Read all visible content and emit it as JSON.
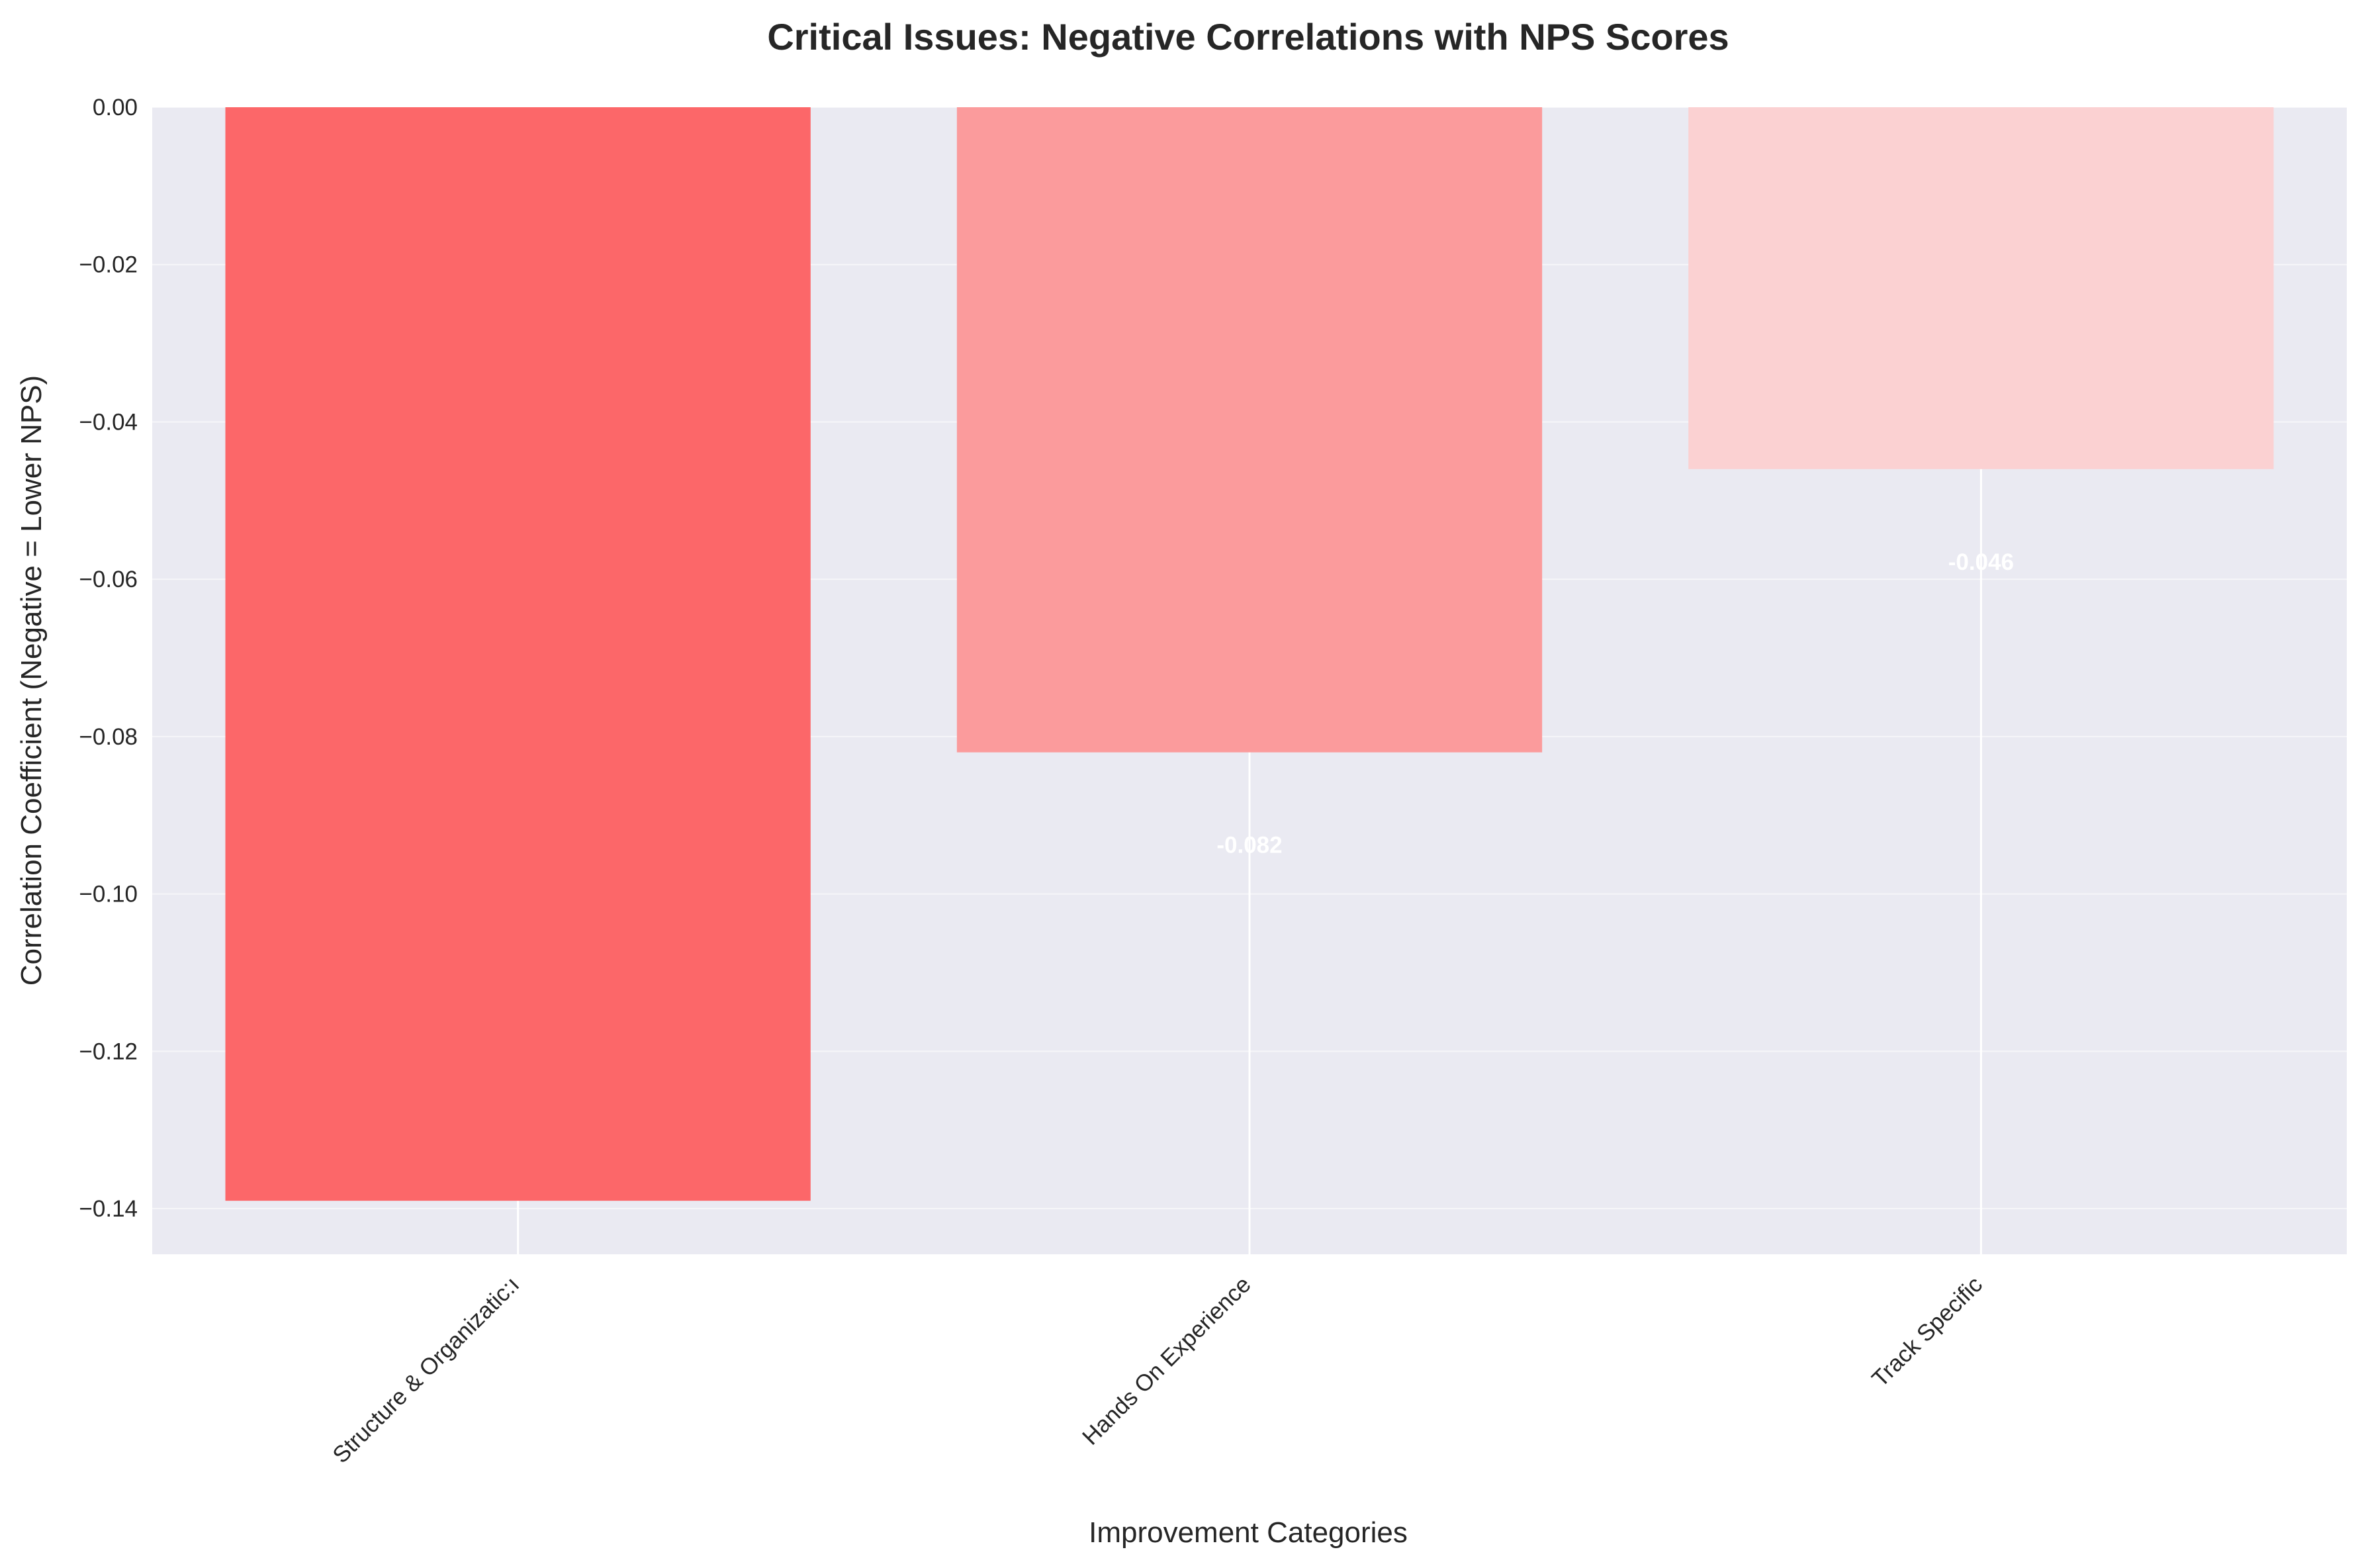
{
  "chart_data": {
    "type": "bar",
    "title": "Critical Issues: Negative Correlations with NPS Scores",
    "xlabel": "Improvement Categories",
    "ylabel": "Correlation Coefficient (Negative = Lower NPS)",
    "categories": [
      "Structure & Organizatic:ı",
      "Hands On Experience",
      "Track Specific"
    ],
    "values": [
      -0.139,
      -0.082,
      -0.046
    ],
    "data_labels": [
      "",
      "-0.082",
      "-0.046"
    ],
    "bar_colors": [
      "#fc6769",
      "#fb9b9c",
      "#fbd1d2"
    ],
    "ylim": [
      -0.1458,
      0.0
    ],
    "yticks": [
      0.0,
      -0.02,
      -0.04,
      -0.06,
      -0.08,
      -0.1,
      -0.12,
      -0.14
    ],
    "ytick_labels": [
      "0.00",
      "−0.02",
      "−0.04",
      "−0.06",
      "−0.08",
      "−0.10",
      "−0.12",
      "−0.14"
    ],
    "grid": true,
    "background_color": "#eaeaf2",
    "grid_color": "#ffffff"
  }
}
